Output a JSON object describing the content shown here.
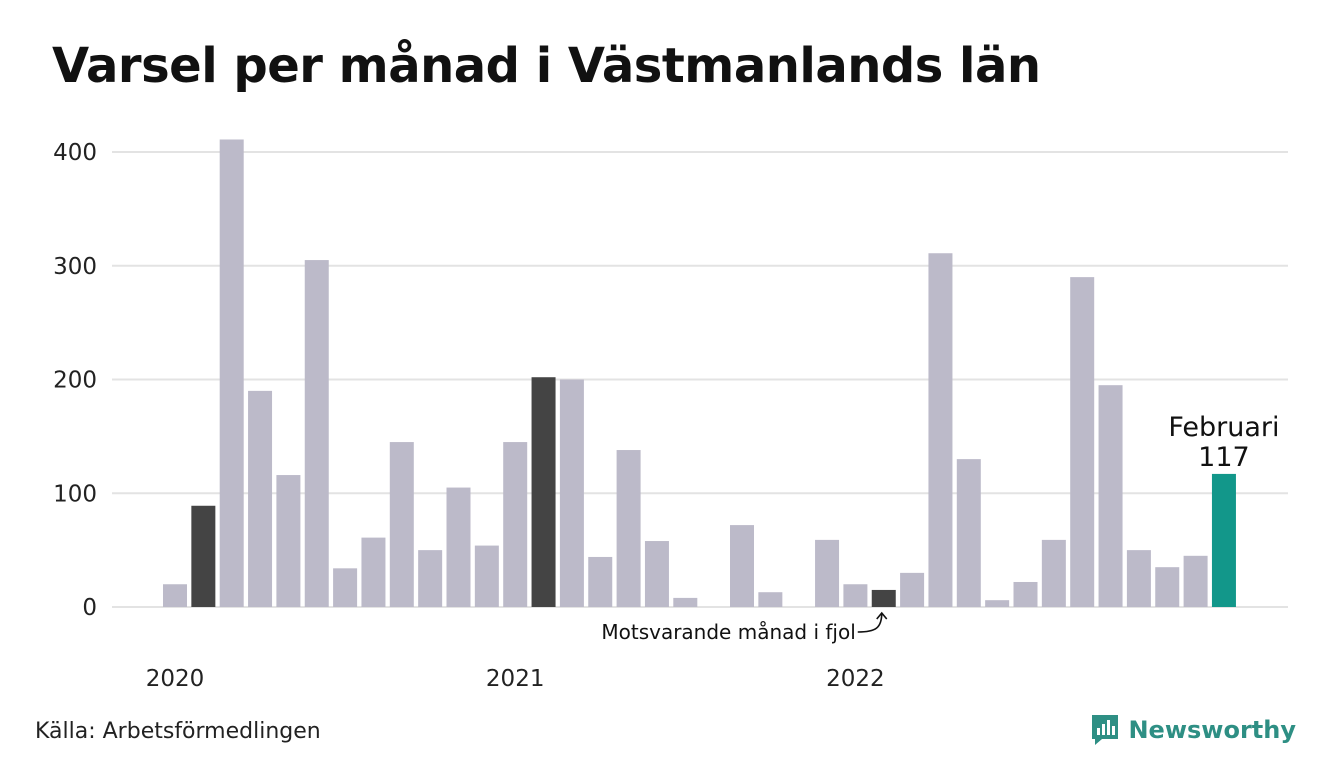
{
  "title": "Varsel per månad i Västmanlands län",
  "source": "Källa: Arbetsförmedlingen",
  "brand": {
    "name": "Newsworthy",
    "icon": "newsworthy-logo-icon",
    "color": "#2e8f84"
  },
  "colors": {
    "bar": "#bcbac9",
    "comparison": "#444444",
    "highlight": "#12978a",
    "grid": "#e3e3e3"
  },
  "chart_data": {
    "type": "bar",
    "ylim": [
      0,
      400
    ],
    "yticks": [
      "0",
      "100",
      "200",
      "300",
      "400"
    ],
    "year_labels": [
      {
        "label": "2020",
        "index": 0
      },
      {
        "label": "2021",
        "index": 12
      },
      {
        "label": "2022",
        "index": 24
      }
    ],
    "values": [
      20,
      89,
      411,
      190,
      116,
      305,
      34,
      61,
      145,
      50,
      105,
      54,
      145,
      202,
      200,
      44,
      138,
      58,
      8,
      0,
      72,
      13,
      0,
      59,
      20,
      15,
      30,
      311,
      130,
      6,
      22,
      59,
      290,
      195,
      50,
      35,
      45,
      117
    ],
    "comparison_indices": [
      1,
      13,
      25
    ],
    "highlight_index": 37,
    "highlight_label": "Februari",
    "highlight_value_label": "117",
    "annotation": {
      "text": "Motsvarande månad i fjol",
      "target_index": 25
    }
  }
}
